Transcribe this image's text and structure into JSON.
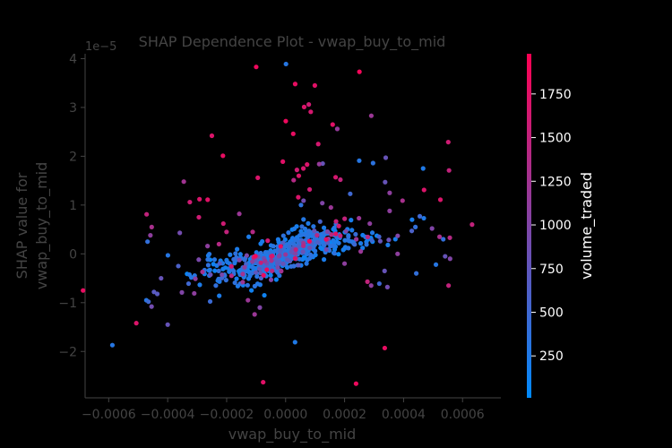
{
  "chart_data": {
    "type": "scatter",
    "title": "SHAP Dependence Plot - vwap_buy_to_mid",
    "xlabel": "vwap_buy_to_mid",
    "ylabel_line1": "SHAP value for",
    "ylabel_line2": "vwap_buy_to_mid",
    "y_offset_label": "1e−5",
    "y_scale": 1e-05,
    "xlim": [
      -0.00068,
      0.00073
    ],
    "ylim": [
      -2.95,
      4.1
    ],
    "xticks": [
      {
        "value": -0.0006,
        "label": "−0.0006"
      },
      {
        "value": -0.0004,
        "label": "−0.0004"
      },
      {
        "value": -0.0002,
        "label": "−0.0002"
      },
      {
        "value": 0.0,
        "label": "0.0000"
      },
      {
        "value": 0.0002,
        "label": "0.0002"
      },
      {
        "value": 0.0004,
        "label": "0.0004"
      },
      {
        "value": 0.0006,
        "label": "0.0006"
      }
    ],
    "yticks": [
      {
        "value": -2,
        "label": "−2"
      },
      {
        "value": -1,
        "label": "−1"
      },
      {
        "value": 0,
        "label": "0"
      },
      {
        "value": 1,
        "label": "1"
      },
      {
        "value": 2,
        "label": "2"
      },
      {
        "value": 3,
        "label": "3"
      },
      {
        "value": 4,
        "label": "4"
      }
    ],
    "colorbar": {
      "label": "volume_traded",
      "range": [
        10,
        1980
      ],
      "ticks": [
        {
          "value": 250,
          "label": "250"
        },
        {
          "value": 500,
          "label": "500"
        },
        {
          "value": 750,
          "label": "750"
        },
        {
          "value": 1000,
          "label": "1000"
        },
        {
          "value": 1250,
          "label": "1250"
        },
        {
          "value": 1500,
          "label": "1500"
        },
        {
          "value": 1750,
          "label": "1750"
        }
      ],
      "color_low": "#008afb",
      "color_high": "#ff0052"
    },
    "outlier_points": [
      {
        "x": -9.98e-05,
        "y": 3.83,
        "c": 1850
      },
      {
        "x": 1.2e-06,
        "y": 3.89,
        "c": 300
      },
      {
        "x": 3.24e-05,
        "y": 3.48,
        "c": 1800
      },
      {
        "x": 9.91e-05,
        "y": 3.45,
        "c": 1750
      },
      {
        "x": 0.0002503,
        "y": 3.73,
        "c": 1900
      },
      {
        "x": 7.85e-05,
        "y": 3.06,
        "c": 1600
      },
      {
        "x": 6.28e-05,
        "y": 3.01,
        "c": 1700
      },
      {
        "x": 8.52e-05,
        "y": 2.91,
        "c": 1650
      },
      {
        "x": 0.0002906,
        "y": 2.83,
        "c": 1200
      },
      {
        "x": 5e-07,
        "y": 2.72,
        "c": 1850
      },
      {
        "x": 0.0001596,
        "y": 2.65,
        "c": 1750
      },
      {
        "x": 0.0001752,
        "y": 2.56,
        "c": 1150
      },
      {
        "x": 2.58e-05,
        "y": 2.46,
        "c": 1800
      },
      {
        "x": -0.0002501,
        "y": 2.42,
        "c": 1700
      },
      {
        "x": 0.0005516,
        "y": 2.29,
        "c": 1600
      },
      {
        "x": 0.0001106,
        "y": 2.25,
        "c": 1650
      },
      {
        "x": -0.0002126,
        "y": 2.01,
        "c": 1800
      },
      {
        "x": 0.0003395,
        "y": 1.97,
        "c": 800
      },
      {
        "x": 0.0002496,
        "y": 1.91,
        "c": 300
      },
      {
        "x": -9.5e-06,
        "y": 1.89,
        "c": 1750
      },
      {
        "x": 0.0002965,
        "y": 1.86,
        "c": 350
      },
      {
        "x": 0.0001258,
        "y": 1.85,
        "c": 800
      },
      {
        "x": 7.28e-05,
        "y": 1.83,
        "c": 1700
      },
      {
        "x": 0.0001139,
        "y": 1.84,
        "c": 1150
      },
      {
        "x": 6.02e-05,
        "y": 1.75,
        "c": 1650
      },
      {
        "x": 3.83e-05,
        "y": 1.72,
        "c": 1600
      },
      {
        "x": 0.0004664,
        "y": 1.75,
        "c": 250
      },
      {
        "x": 0.0005542,
        "y": 1.71,
        "c": 1500
      },
      {
        "x": 4.47e-05,
        "y": 1.6,
        "c": 1700
      },
      {
        "x": -9.44e-05,
        "y": 1.56,
        "c": 1700
      },
      {
        "x": 0.0001696,
        "y": 1.57,
        "c": 1650
      },
      {
        "x": 0.0001858,
        "y": 1.52,
        "c": 1500
      },
      {
        "x": -0.0003453,
        "y": 1.48,
        "c": 1250
      },
      {
        "x": 2.73e-05,
        "y": 1.51,
        "c": 1400
      },
      {
        "x": 0.0003375,
        "y": 1.47,
        "c": 800
      },
      {
        "x": 0.0004695,
        "y": 1.31,
        "c": 1700
      },
      {
        "x": 8.14e-05,
        "y": 1.32,
        "c": 1600
      },
      {
        "x": 0.0002191,
        "y": 1.23,
        "c": 500
      },
      {
        "x": 0.0003529,
        "y": 1.25,
        "c": 1100
      },
      {
        "x": -0.0002644,
        "y": 1.11,
        "c": 1750
      },
      {
        "x": -0.0002921,
        "y": 1.12,
        "c": 1700
      },
      {
        "x": -0.0003249,
        "y": 1.06,
        "c": 1600
      },
      {
        "x": 0.0003966,
        "y": 1.09,
        "c": 1300
      },
      {
        "x": 0.0005249,
        "y": 1.11,
        "c": 1700
      },
      {
        "x": -0.0004714,
        "y": 0.81,
        "c": 1500
      },
      {
        "x": -0.0002942,
        "y": 0.75,
        "c": 1600
      },
      {
        "x": -0.0001571,
        "y": 0.82,
        "c": 1200
      },
      {
        "x": 0.0004551,
        "y": 0.77,
        "c": 500
      },
      {
        "x": 0.0004687,
        "y": 0.73,
        "c": 250
      },
      {
        "x": 0.0004288,
        "y": 0.7,
        "c": 200
      },
      {
        "x": 0.0006324,
        "y": 0.6,
        "c": 1500
      },
      {
        "x": -0.0004542,
        "y": 0.55,
        "c": 1300
      },
      {
        "x": -0.0004586,
        "y": 0.38,
        "c": 1100
      },
      {
        "x": -0.0004683,
        "y": 0.25,
        "c": 400
      },
      {
        "x": -0.0003589,
        "y": 0.43,
        "c": 900
      },
      {
        "x": -0.0002112,
        "y": 0.62,
        "c": 1600
      },
      {
        "x": 0.0005221,
        "y": 0.35,
        "c": 1300
      },
      {
        "x": 0.0005569,
        "y": 0.33,
        "c": 1400
      },
      {
        "x": 0.0005346,
        "y": 0.3,
        "c": 400
      },
      {
        "x": 0.0004966,
        "y": 0.52,
        "c": 1000
      },
      {
        "x": 0.0004402,
        "y": 0.55,
        "c": 400
      },
      {
        "x": 0.0004279,
        "y": 0.47,
        "c": 600
      },
      {
        "x": -0.0003992,
        "y": -0.03,
        "c": 300
      },
      {
        "x": -0.0003639,
        "y": -0.25,
        "c": 600
      },
      {
        "x": -0.0004223,
        "y": -0.5,
        "c": 800
      },
      {
        "x": -0.0004353,
        "y": -0.82,
        "c": 700
      },
      {
        "x": -0.0004464,
        "y": -0.78,
        "c": 700
      },
      {
        "x": -0.0004651,
        "y": -0.98,
        "c": 500
      },
      {
        "x": -0.0004546,
        "y": -1.08,
        "c": 900
      },
      {
        "x": -0.0004723,
        "y": -0.95,
        "c": 300
      },
      {
        "x": -0.0003999,
        "y": -1.45,
        "c": 800
      },
      {
        "x": -0.0005064,
        "y": -1.42,
        "c": 1700
      },
      {
        "x": -0.0005876,
        "y": -1.87,
        "c": 300
      },
      {
        "x": -0.000687,
        "y": -0.75,
        "c": 1800
      },
      {
        "x": -0.0003518,
        "y": -0.79,
        "c": 1000
      },
      {
        "x": -0.0003099,
        "y": -0.81,
        "c": 1100
      },
      {
        "x": -0.000306,
        "y": -0.51,
        "c": 1100
      },
      {
        "x": -0.0001051,
        "y": -1.24,
        "c": 1200
      },
      {
        "x": -8.75e-05,
        "y": -1.1,
        "c": 1000
      },
      {
        "x": -0.0001276,
        "y": -0.95,
        "c": 1200
      },
      {
        "x": 3.2e-05,
        "y": -1.81,
        "c": 250
      },
      {
        "x": 0.0003362,
        "y": -1.93,
        "c": 1800
      },
      {
        "x": -7.62e-05,
        "y": -2.63,
        "c": 1750
      },
      {
        "x": 0.0002389,
        "y": -2.66,
        "c": 1850
      },
      {
        "x": 0.0002775,
        "y": -0.57,
        "c": 1500
      },
      {
        "x": 0.0002901,
        "y": -0.65,
        "c": 1100
      },
      {
        "x": 0.0003178,
        "y": -0.61,
        "c": 500
      },
      {
        "x": 0.0003452,
        "y": -0.68,
        "c": 900
      },
      {
        "x": 0.0003356,
        "y": -0.35,
        "c": 800
      },
      {
        "x": 0.0004431,
        "y": -0.4,
        "c": 400
      },
      {
        "x": 0.0005526,
        "y": -0.65,
        "c": 1500
      },
      {
        "x": 0.0005578,
        "y": -0.1,
        "c": 1000
      },
      {
        "x": 0.000541,
        "y": -0.05,
        "c": 800
      },
      {
        "x": 0.0005098,
        "y": -0.22,
        "c": 300
      },
      {
        "x": 0.0003798,
        "y": -0.0,
        "c": 1100
      },
      {
        "x": 0.0002547,
        "y": 0.05,
        "c": 1200
      },
      {
        "x": 0.0001999,
        "y": -0.2,
        "c": 1100
      },
      {
        "x": 0.0001536,
        "y": 0.95,
        "c": 1200
      },
      {
        "x": 0.0002002,
        "y": 0.72,
        "c": 1500
      },
      {
        "x": 0.0001244,
        "y": 1.04,
        "c": 1000
      },
      {
        "x": 6.08e-05,
        "y": 1.09,
        "c": 900
      },
      {
        "x": 4.29e-05,
        "y": 1.16,
        "c": 1700
      },
      {
        "x": -0.0002004,
        "y": 0.45,
        "c": 1500
      },
      {
        "x": -0.0002261,
        "y": 0.2,
        "c": 1400
      },
      {
        "x": -0.0002648,
        "y": 0.16,
        "c": 1100
      },
      {
        "x": -0.0002819,
        "y": -0.37,
        "c": 1300
      },
      {
        "x": -0.0003291,
        "y": -0.61,
        "c": 500
      },
      {
        "x": -0.0002366,
        "y": -0.65,
        "c": 400
      },
      {
        "x": -0.0001835,
        "y": -0.45,
        "c": 1400
      },
      {
        "x": -0.0001454,
        "y": -0.58,
        "c": 1200
      },
      {
        "x": 0.0002395,
        "y": 0.3,
        "c": 1200
      },
      {
        "x": 0.0003209,
        "y": 0.26,
        "c": 800
      },
      {
        "x": 0.0002855,
        "y": 0.62,
        "c": 1100
      },
      {
        "x": 0.0002488,
        "y": 0.73,
        "c": 1200
      },
      {
        "x": 0.0003801,
        "y": 0.37,
        "c": 1000
      },
      {
        "x": 0.0003528,
        "y": 0.88,
        "c": 1100
      },
      {
        "x": -0.0001117,
        "y": 0.45,
        "c": 1400
      },
      {
        "x": -6.07e-05,
        "y": 0.27,
        "c": 1600
      },
      {
        "x": 0.0001803,
        "y": 0.57,
        "c": 1600
      }
    ],
    "cluster": {
      "n": 560,
      "seed": 12345
    }
  }
}
